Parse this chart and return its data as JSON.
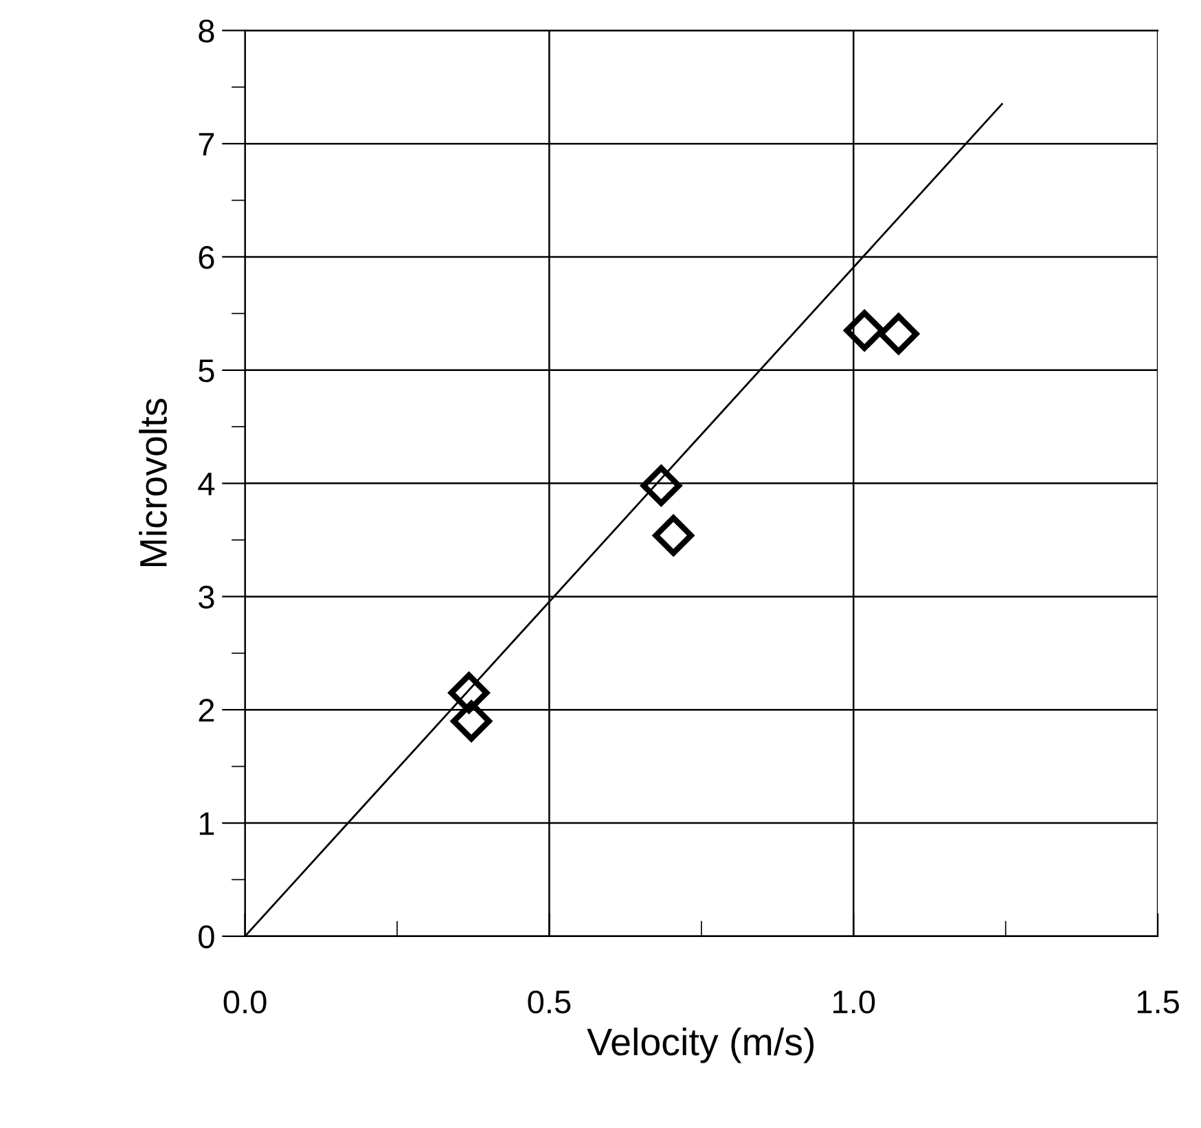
{
  "chart_data": {
    "type": "scatter",
    "xlabel": "Velocity (m/s)",
    "ylabel": "Microvolts",
    "xlim": [
      0,
      1.5
    ],
    "ylim": [
      0,
      8
    ],
    "xticks": [
      {
        "value": 0,
        "label": "0.0"
      },
      0.5,
      {
        "value": 1,
        "label": "1.0"
      },
      1.5
    ],
    "yticks": [
      0,
      1,
      2,
      3,
      4,
      5,
      6,
      7,
      8
    ],
    "grid": true,
    "marker": "diamond",
    "series": [
      {
        "color": "#000000",
        "x": [
          0.368,
          0.372,
          0.684,
          0.704,
          1.018,
          1.074
        ],
        "values": [
          2.15,
          1.9,
          3.98,
          3.54,
          5.35,
          5.32
        ]
      },
      {
        "type": "line",
        "color": "#000000",
        "marker": "none",
        "x": [
          0,
          1.244
        ],
        "values": [
          0,
          7.35
        ]
      }
    ]
  }
}
